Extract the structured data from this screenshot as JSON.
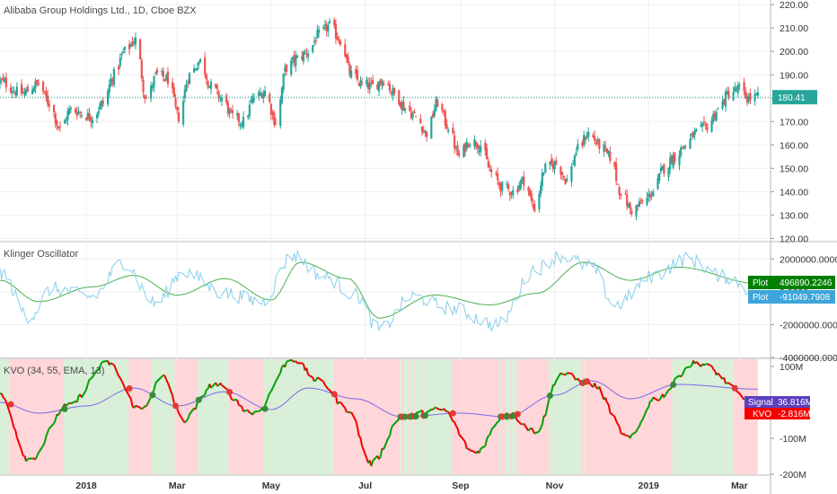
{
  "colors": {
    "up": "#26a69a",
    "down": "#ef5350",
    "last_price_tag": "#26a69a",
    "klinger_plot1": "#4caf50",
    "klinger_plot2": "#87ceeb",
    "kvo_up": "#00a000",
    "kvo_down": "#ee0000",
    "signal": "#7b68ee",
    "bg_up": "#d9efd8",
    "bg_down": "#ffd6d9",
    "cross_green": "#3a8a3a",
    "cross_red": "#e53935",
    "tag_green": "#008000",
    "tag_blue": "#3da5d9",
    "tag_signal": "#5b3fbf",
    "tag_kvo": "#f40000"
  },
  "chart_data": [
    {
      "type": "candlestick",
      "title": "Alibaba Group Holdings Ltd., 1D, Cboe BZX",
      "last_price": "180.41",
      "last_value": 180.41,
      "y_ticks": [
        "220.00",
        "210.00",
        "200.00",
        "190.00",
        "180.00",
        "170.00",
        "160.00",
        "150.00",
        "140.00",
        "130.00",
        "120.00"
      ],
      "ylim": [
        119,
        222
      ],
      "x_tick_labels": [
        "2018",
        "Mar",
        "May",
        "Jul",
        "Sep",
        "Nov",
        "2019",
        "Mar"
      ],
      "x_tick_dates": [
        "2018-01-01",
        "2018-03-01",
        "2018-05-01",
        "2018-07-01",
        "2018-09-01",
        "2018-11-01",
        "2019-01-01",
        "2019-03-01"
      ],
      "date_range": [
        "2017-11-06",
        "2019-03-13"
      ],
      "close_path": [
        [
          "2017-11-06",
          187
        ],
        [
          "2017-11-20",
          182
        ],
        [
          "2017-12-01",
          186
        ],
        [
          "2017-12-08",
          178
        ],
        [
          "2017-12-15",
          167
        ],
        [
          "2017-12-22",
          175
        ],
        [
          "2018-01-05",
          172
        ],
        [
          "2018-01-12",
          178
        ],
        [
          "2018-01-19",
          190
        ],
        [
          "2018-01-26",
          200
        ],
        [
          "2018-02-02",
          205
        ],
        [
          "2018-02-09",
          180
        ],
        [
          "2018-02-16",
          190
        ],
        [
          "2018-02-23",
          188
        ],
        [
          "2018-03-02",
          172
        ],
        [
          "2018-03-09",
          190
        ],
        [
          "2018-03-16",
          196
        ],
        [
          "2018-03-23",
          185
        ],
        [
          "2018-03-30",
          180
        ],
        [
          "2018-04-06",
          172
        ],
        [
          "2018-04-13",
          170
        ],
        [
          "2018-04-20",
          180
        ],
        [
          "2018-04-27",
          183
        ],
        [
          "2018-05-04",
          170
        ],
        [
          "2018-05-11",
          193
        ],
        [
          "2018-05-18",
          197
        ],
        [
          "2018-05-25",
          200
        ],
        [
          "2018-06-01",
          207
        ],
        [
          "2018-06-08",
          211
        ],
        [
          "2018-06-15",
          205
        ],
        [
          "2018-06-22",
          190
        ],
        [
          "2018-06-29",
          186
        ],
        [
          "2018-07-06",
          185
        ],
        [
          "2018-07-13",
          188
        ],
        [
          "2018-07-20",
          182
        ],
        [
          "2018-07-27",
          176
        ],
        [
          "2018-08-03",
          172
        ],
        [
          "2018-08-10",
          165
        ],
        [
          "2018-08-17",
          178
        ],
        [
          "2018-08-24",
          168
        ],
        [
          "2018-08-31",
          155
        ],
        [
          "2018-09-07",
          162
        ],
        [
          "2018-09-14",
          160
        ],
        [
          "2018-09-21",
          148
        ],
        [
          "2018-09-28",
          142
        ],
        [
          "2018-10-05",
          140
        ],
        [
          "2018-10-12",
          145
        ],
        [
          "2018-10-19",
          133
        ],
        [
          "2018-10-26",
          150
        ],
        [
          "2018-11-02",
          152
        ],
        [
          "2018-11-09",
          145
        ],
        [
          "2018-11-16",
          158
        ],
        [
          "2018-11-23",
          165
        ],
        [
          "2018-11-30",
          160
        ],
        [
          "2018-12-07",
          155
        ],
        [
          "2018-12-14",
          140
        ],
        [
          "2018-12-21",
          132
        ],
        [
          "2018-12-28",
          135
        ],
        [
          "2019-01-04",
          140
        ],
        [
          "2019-01-11",
          150
        ],
        [
          "2019-01-18",
          155
        ],
        [
          "2019-01-25",
          160
        ],
        [
          "2019-02-01",
          165
        ],
        [
          "2019-02-08",
          168
        ],
        [
          "2019-02-15",
          175
        ],
        [
          "2019-02-22",
          182
        ],
        [
          "2019-03-01",
          184
        ],
        [
          "2019-03-06",
          180
        ],
        [
          "2019-03-13",
          180.41
        ]
      ]
    },
    {
      "type": "line",
      "title": "Klinger Oscillator",
      "y_ticks": [
        "2000000.0000",
        "0.0000",
        "-2000000.0000",
        "-4000000.0000"
      ],
      "ylim": [
        -4000000,
        3000000
      ],
      "series": [
        {
          "name": "Plot",
          "color": "#4caf50",
          "last_value": "496890.2246",
          "path": [
            [
              "2017-11-06",
              700000
            ],
            [
              "2017-12-01",
              -600000
            ],
            [
              "2018-01-05",
              300000
            ],
            [
              "2018-02-01",
              1000000
            ],
            [
              "2018-03-01",
              -200000
            ],
            [
              "2018-04-01",
              800000
            ],
            [
              "2018-05-01",
              -500000
            ],
            [
              "2018-05-20",
              1800000
            ],
            [
              "2018-06-20",
              800000
            ],
            [
              "2018-07-10",
              -1600000
            ],
            [
              "2018-08-15",
              -200000
            ],
            [
              "2018-09-20",
              -800000
            ],
            [
              "2018-10-20",
              -100000
            ],
            [
              "2018-11-20",
              1800000
            ],
            [
              "2018-12-20",
              700000
            ],
            [
              "2019-01-20",
              1500000
            ],
            [
              "2019-03-13",
              500000
            ]
          ]
        },
        {
          "name": "Plot",
          "color": "#87ceeb",
          "last_value": "-91049.7908",
          "path": [
            [
              "2017-11-06",
              1200000
            ],
            [
              "2017-11-25",
              -1500000
            ],
            [
              "2017-12-10",
              200000
            ],
            [
              "2018-01-05",
              -300000
            ],
            [
              "2018-01-25",
              1800000
            ],
            [
              "2018-02-15",
              -700000
            ],
            [
              "2018-03-05",
              1200000
            ],
            [
              "2018-04-01",
              -100000
            ],
            [
              "2018-04-25",
              -600000
            ],
            [
              "2018-05-15",
              2200000
            ],
            [
              "2018-06-05",
              900000
            ],
            [
              "2018-06-25",
              -200000
            ],
            [
              "2018-07-10",
              -2300000
            ],
            [
              "2018-08-01",
              -300000
            ],
            [
              "2018-08-25",
              -1000000
            ],
            [
              "2018-09-25",
              -2000000
            ],
            [
              "2018-10-20",
              1400000
            ],
            [
              "2018-11-05",
              2200000
            ],
            [
              "2018-11-25",
              1500000
            ],
            [
              "2018-12-10",
              -800000
            ],
            [
              "2019-01-05",
              1000000
            ],
            [
              "2019-01-25",
              2000000
            ],
            [
              "2019-02-20",
              900000
            ],
            [
              "2019-03-13",
              -91049.7908
            ]
          ]
        }
      ]
    },
    {
      "type": "line",
      "title": "KVO (34, 55, EMA, 13)",
      "y_ticks": [
        "100M",
        "0",
        "-100M",
        "-200M"
      ],
      "ylim": [
        -200000000,
        120000000
      ],
      "series": [
        {
          "name": "Signal",
          "color": "#7b68ee",
          "last_value": "36.816M",
          "path": [
            [
              "2017-11-06",
              0
            ],
            [
              "2017-12-01",
              -30000000
            ],
            [
              "2018-01-01",
              -10000000
            ],
            [
              "2018-02-01",
              40000000
            ],
            [
              "2018-03-01",
              -10000000
            ],
            [
              "2018-04-01",
              30000000
            ],
            [
              "2018-05-01",
              -20000000
            ],
            [
              "2018-05-25",
              40000000
            ],
            [
              "2018-06-25",
              10000000
            ],
            [
              "2018-07-25",
              -40000000
            ],
            [
              "2018-09-01",
              -30000000
            ],
            [
              "2018-10-01",
              -40000000
            ],
            [
              "2018-11-01",
              20000000
            ],
            [
              "2018-11-25",
              60000000
            ],
            [
              "2018-12-20",
              10000000
            ],
            [
              "2019-01-20",
              50000000
            ],
            [
              "2019-03-13",
              36816000
            ]
          ]
        },
        {
          "name": "KVO",
          "color": "#f40000",
          "last_value": "-2.816M",
          "path": [
            [
              "2017-11-06",
              20000000
            ],
            [
              "2017-11-25",
              -160000000
            ],
            [
              "2017-12-20",
              -10000000
            ],
            [
              "2018-01-15",
              110000000
            ],
            [
              "2018-02-05",
              -20000000
            ],
            [
              "2018-02-20",
              70000000
            ],
            [
              "2018-03-05",
              -50000000
            ],
            [
              "2018-03-25",
              50000000
            ],
            [
              "2018-04-20",
              -30000000
            ],
            [
              "2018-05-15",
              120000000
            ],
            [
              "2018-06-01",
              60000000
            ],
            [
              "2018-06-20",
              -20000000
            ],
            [
              "2018-07-05",
              -170000000
            ],
            [
              "2018-07-25",
              -40000000
            ],
            [
              "2018-08-20",
              -20000000
            ],
            [
              "2018-09-10",
              -140000000
            ],
            [
              "2018-10-01",
              -30000000
            ],
            [
              "2018-10-20",
              -80000000
            ],
            [
              "2018-11-05",
              80000000
            ],
            [
              "2018-11-25",
              50000000
            ],
            [
              "2018-12-20",
              -100000000
            ],
            [
              "2019-01-05",
              10000000
            ],
            [
              "2019-02-01",
              110000000
            ],
            [
              "2019-03-13",
              -2816000
            ]
          ]
        }
      ]
    }
  ]
}
